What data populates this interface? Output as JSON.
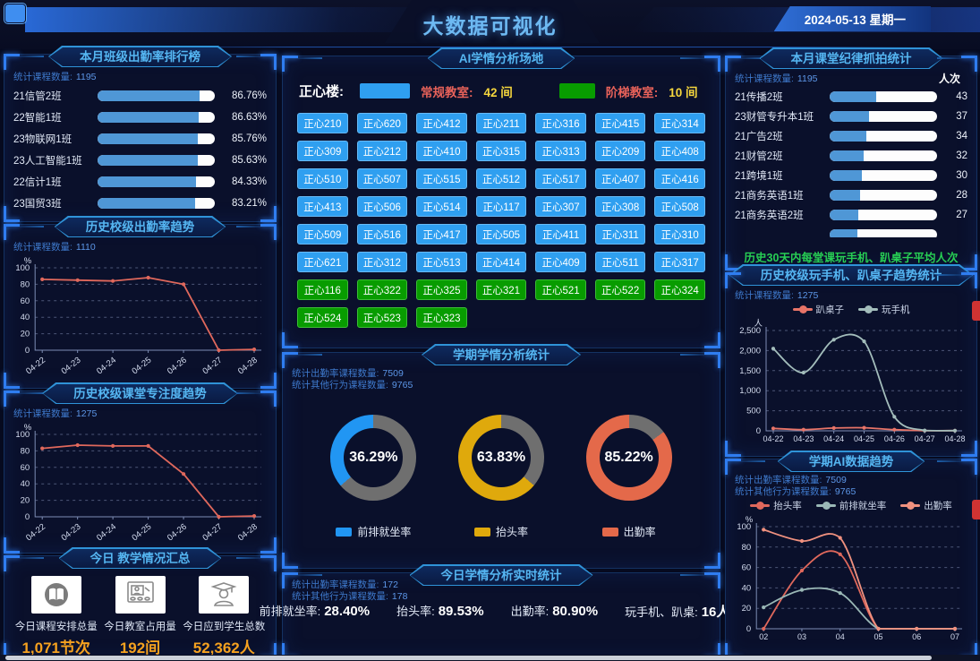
{
  "header": {
    "title": "大数据可视化",
    "date": "2024-05-13 星期一"
  },
  "colors": {
    "accent_blue": "#2f9ff0",
    "accent_green": "#089c00",
    "bar_fill": "#4f97d6",
    "donut_rest": "#6f6f6f",
    "value_orange": "#f5a11f",
    "footer_green": "#27cf54",
    "line_red": "#e0685c",
    "line_teal": "#9ab8b6",
    "line_salmon": "#f0917f"
  },
  "left": {
    "ranking": {
      "title": "本月班级出勤率排行榜",
      "stat_label": "统计课程数量:",
      "stat_value": "1195",
      "rows": [
        {
          "label": "21信管2班",
          "value": "86.76%",
          "pct": 86.76
        },
        {
          "label": "22智能1班",
          "value": "86.63%",
          "pct": 86.63
        },
        {
          "label": "23物联网1班",
          "value": "85.76%",
          "pct": 85.76
        },
        {
          "label": "23人工智能1班",
          "value": "85.63%",
          "pct": 85.63
        },
        {
          "label": "22信计1班",
          "value": "84.33%",
          "pct": 84.33
        },
        {
          "label": "23国贸3班",
          "value": "83.21%",
          "pct": 83.21
        },
        {
          "label": "",
          "value": "",
          "pct": 83
        }
      ]
    },
    "attendance_trend": {
      "title": "历史校级出勤率趋势",
      "stat_label": "统计课程数量:",
      "stat_value": "1110"
    },
    "focus_trend": {
      "title": "历史校级课堂专注度趋势",
      "stat_label": "统计课程数量:",
      "stat_value": "1275"
    },
    "today_summary": {
      "title": "今日 教学情况汇总",
      "items": [
        {
          "icon": "book-icon",
          "label": "今日课程安排总量",
          "value": "1,071节次"
        },
        {
          "icon": "classroom-icon",
          "label": "今日教室占用量",
          "value": "192间"
        },
        {
          "icon": "graduate-icon",
          "label": "今日应到学生总数",
          "value": "52,362人"
        }
      ]
    }
  },
  "center": {
    "venues": {
      "title": "AI学情分析场地",
      "building_label": "正心楼:",
      "legend": [
        {
          "label": "常规教室:",
          "count": "42 间",
          "type": "regular"
        },
        {
          "label": "阶梯教室:",
          "count": "10 间",
          "type": "tiered"
        }
      ],
      "rooms": [
        {
          "name": "正心210",
          "type": "regular"
        },
        {
          "name": "正心620",
          "type": "regular"
        },
        {
          "name": "正心412",
          "type": "regular"
        },
        {
          "name": "正心211",
          "type": "regular"
        },
        {
          "name": "正心316",
          "type": "regular"
        },
        {
          "name": "正心415",
          "type": "regular"
        },
        {
          "name": "正心314",
          "type": "regular"
        },
        {
          "name": "正心309",
          "type": "regular"
        },
        {
          "name": "正心212",
          "type": "regular"
        },
        {
          "name": "正心410",
          "type": "regular"
        },
        {
          "name": "正心315",
          "type": "regular"
        },
        {
          "name": "正心313",
          "type": "regular"
        },
        {
          "name": "正心209",
          "type": "regular"
        },
        {
          "name": "正心408",
          "type": "regular"
        },
        {
          "name": "正心510",
          "type": "regular"
        },
        {
          "name": "正心507",
          "type": "regular"
        },
        {
          "name": "正心515",
          "type": "regular"
        },
        {
          "name": "正心512",
          "type": "regular"
        },
        {
          "name": "正心517",
          "type": "regular"
        },
        {
          "name": "正心407",
          "type": "regular"
        },
        {
          "name": "正心416",
          "type": "regular"
        },
        {
          "name": "正心413",
          "type": "regular"
        },
        {
          "name": "正心506",
          "type": "regular"
        },
        {
          "name": "正心514",
          "type": "regular"
        },
        {
          "name": "正心117",
          "type": "regular"
        },
        {
          "name": "正心307",
          "type": "regular"
        },
        {
          "name": "正心308",
          "type": "regular"
        },
        {
          "name": "正心508",
          "type": "regular"
        },
        {
          "name": "正心509",
          "type": "regular"
        },
        {
          "name": "正心516",
          "type": "regular"
        },
        {
          "name": "正心417",
          "type": "regular"
        },
        {
          "name": "正心505",
          "type": "regular"
        },
        {
          "name": "正心411",
          "type": "regular"
        },
        {
          "name": "正心311",
          "type": "regular"
        },
        {
          "name": "正心310",
          "type": "regular"
        },
        {
          "name": "正心621",
          "type": "regular"
        },
        {
          "name": "正心312",
          "type": "regular"
        },
        {
          "name": "正心513",
          "type": "regular"
        },
        {
          "name": "正心414",
          "type": "regular"
        },
        {
          "name": "正心409",
          "type": "regular"
        },
        {
          "name": "正心511",
          "type": "regular"
        },
        {
          "name": "正心317",
          "type": "regular"
        },
        {
          "name": "正心116",
          "type": "tiered"
        },
        {
          "name": "正心322",
          "type": "tiered"
        },
        {
          "name": "正心325",
          "type": "tiered"
        },
        {
          "name": "正心321",
          "type": "tiered"
        },
        {
          "name": "正心521",
          "type": "tiered"
        },
        {
          "name": "正心522",
          "type": "tiered"
        },
        {
          "name": "正心324",
          "type": "tiered"
        },
        {
          "name": "正心524",
          "type": "tiered"
        },
        {
          "name": "正心523",
          "type": "tiered"
        },
        {
          "name": "正心323",
          "type": "tiered"
        }
      ]
    },
    "semester": {
      "title": "学期学情分析统计",
      "stats": [
        {
          "label": "统计出勤率课程数量:",
          "value": "7509"
        },
        {
          "label": "统计其他行为课程数量:",
          "value": "9765"
        }
      ],
      "donuts": [
        {
          "display": "36.29%",
          "pct": 36.29,
          "label": "前排就坐率",
          "color": "#2196f3"
        },
        {
          "display": "63.83%",
          "pct": 63.83,
          "label": "抬头率",
          "color": "#dfa90c"
        },
        {
          "display": "85.22%",
          "pct": 85.22,
          "label": "出勤率",
          "color": "#e4694a"
        }
      ]
    },
    "realtime": {
      "title": "今日学情分析实时统计",
      "stats": [
        {
          "label": "统计出勤率课程数量:",
          "value": "172"
        },
        {
          "label": "统计其他行为课程数量:",
          "value": "178"
        }
      ],
      "metrics": [
        {
          "label": "前排就坐率:",
          "value": "28.40%"
        },
        {
          "label": "抬头率:",
          "value": "89.53%"
        },
        {
          "label": "出勤率:",
          "value": "80.90%"
        },
        {
          "label": "玩手机、趴桌:",
          "value": "16人次"
        }
      ]
    }
  },
  "right": {
    "discipline": {
      "title": "本月课堂纪律抓拍统计",
      "stat_label": "统计课程数量:",
      "stat_value": "1195",
      "unit": "人次",
      "rows": [
        {
          "label": "21传播2班",
          "value": "43",
          "pct": 43
        },
        {
          "label": "23财管专升本1班",
          "value": "37",
          "pct": 37
        },
        {
          "label": "21广告2班",
          "value": "34",
          "pct": 34
        },
        {
          "label": "21财管2班",
          "value": "32",
          "pct": 32
        },
        {
          "label": "21跨境1班",
          "value": "30",
          "pct": 30
        },
        {
          "label": "21商务英语1班",
          "value": "28",
          "pct": 28
        },
        {
          "label": "21商务英语2班",
          "value": "27",
          "pct": 27
        },
        {
          "label": "",
          "value": "",
          "pct": 26
        }
      ],
      "footer": "历史30天内每堂课玩手机、趴桌子平均人次"
    },
    "phone_trend": {
      "title": "历史校级玩手机、趴桌子趋势统计",
      "stat_label": "统计课程数量:",
      "stat_value": "1275"
    },
    "ai_trend": {
      "title": "学期AI数据趋势",
      "stats": [
        {
          "label": "统计出勤率课程数量:",
          "value": "7509"
        },
        {
          "label": "统计其他行为课程数量:",
          "value": "9765"
        }
      ]
    }
  },
  "chart_data": [
    {
      "id": "chart-attendance",
      "type": "line",
      "title": "历史校级出勤率趋势",
      "x": [
        "04-22",
        "04-23",
        "04-24",
        "04-25",
        "04-26",
        "04-27",
        "04-28"
      ],
      "ylabel": "%",
      "ylim": [
        0,
        100
      ],
      "yticks": [
        0,
        20,
        40,
        60,
        80,
        100
      ],
      "rotate_x": true,
      "grid": true,
      "legend_position": "none",
      "series": [
        {
          "name": "出勤率",
          "color": "#e0685c",
          "smooth": false,
          "values": [
            86,
            85,
            84,
            88,
            80,
            0,
            1
          ]
        }
      ]
    },
    {
      "id": "chart-focus",
      "type": "line",
      "title": "历史校级课堂专注度趋势",
      "x": [
        "04-22",
        "04-23",
        "04-24",
        "04-25",
        "04-26",
        "04-27",
        "04-28"
      ],
      "ylabel": "%",
      "ylim": [
        0,
        100
      ],
      "yticks": [
        0,
        20,
        40,
        60,
        80,
        100
      ],
      "rotate_x": true,
      "grid": true,
      "legend_position": "none",
      "series": [
        {
          "name": "专注度",
          "color": "#e0685c",
          "smooth": false,
          "values": [
            83,
            87,
            86,
            86,
            52,
            0,
            1
          ]
        }
      ]
    },
    {
      "id": "chart-phone",
      "type": "line",
      "title": "历史校级玩手机、趴桌子趋势统计",
      "x": [
        "04-22",
        "04-23",
        "04-24",
        "04-25",
        "04-26",
        "04-27",
        "04-28"
      ],
      "ylabel": "人",
      "ylim": [
        0,
        2500
      ],
      "yticks": [
        0,
        500,
        1000,
        1500,
        2000,
        2500
      ],
      "ytick_labels": [
        "0",
        "500",
        "1,000",
        "1,500",
        "2,000",
        "2,500"
      ],
      "rotate_x": false,
      "grid": true,
      "legend_position": "top",
      "series": [
        {
          "name": "趴桌子",
          "color": "#e87468",
          "smooth": true,
          "values": [
            60,
            30,
            70,
            75,
            30,
            5,
            5
          ]
        },
        {
          "name": "玩手机",
          "color": "#a3bdbb",
          "smooth": true,
          "values": [
            2050,
            1450,
            2270,
            2230,
            350,
            10,
            5
          ]
        }
      ]
    },
    {
      "id": "chart-ai",
      "type": "line",
      "title": "学期AI数据趋势",
      "x": [
        "02",
        "03",
        "04",
        "05",
        "06",
        "07"
      ],
      "ylabel": "%",
      "ylim": [
        0,
        100
      ],
      "yticks": [
        0,
        20,
        40,
        60,
        80,
        100
      ],
      "rotate_x": false,
      "grid": true,
      "legend_position": "top",
      "series": [
        {
          "name": "抬头率",
          "color": "#e0685c",
          "smooth": true,
          "values": [
            0,
            57,
            73,
            0,
            0,
            0
          ]
        },
        {
          "name": "前排就坐率",
          "color": "#9ab8b6",
          "smooth": true,
          "values": [
            21,
            38,
            35,
            0,
            0,
            0
          ]
        },
        {
          "name": "出勤率",
          "color": "#f0917f",
          "smooth": true,
          "values": [
            97,
            86,
            89,
            0,
            0,
            0
          ]
        }
      ]
    }
  ]
}
